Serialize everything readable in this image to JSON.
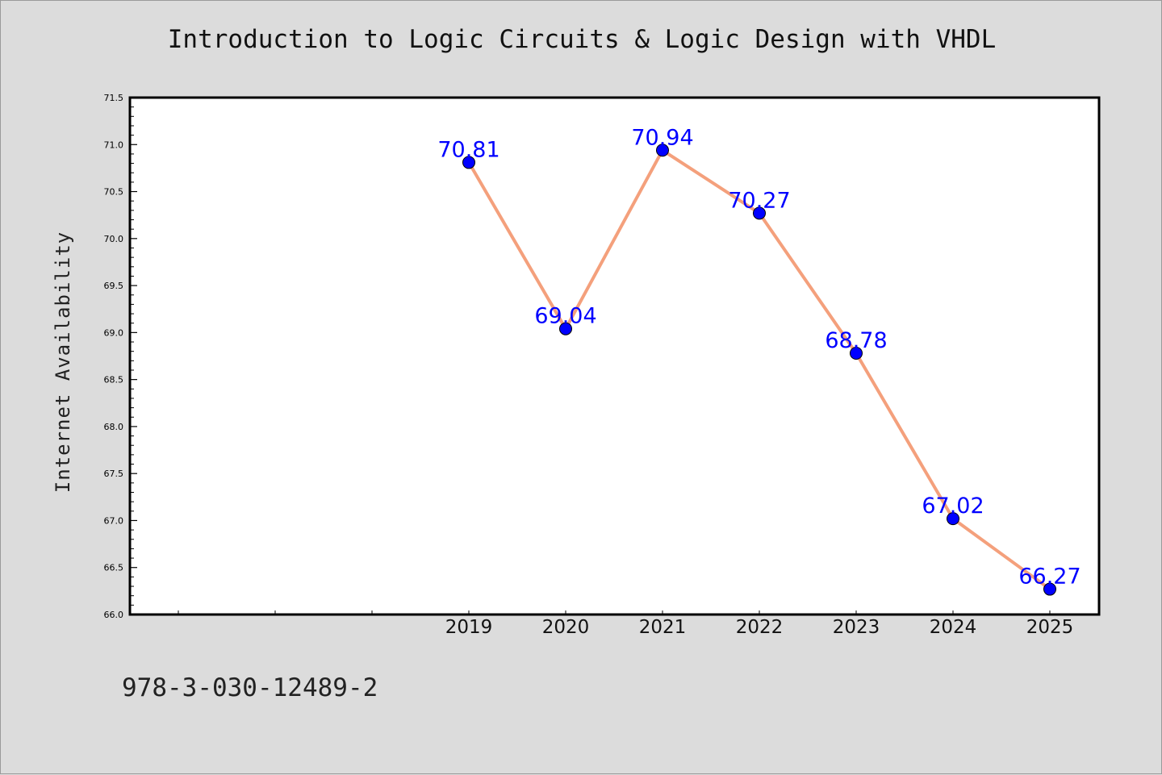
{
  "title": "Introduction to Logic Circuits & Logic Design with VHDL",
  "footnote": "978-3-030-12489-2",
  "colors": {
    "background": "#dcdcdc",
    "plot_background": "#ffffff",
    "line": "#f4a07c",
    "marker": "#0000ff",
    "label": "#0000ff"
  },
  "chart_data": {
    "type": "line",
    "title": "Introduction to Logic Circuits & Logic Design with VHDL",
    "xlabel": "",
    "ylabel": "Internet Availability",
    "x": [
      "2019",
      "2020",
      "2021",
      "2022",
      "2023",
      "2024",
      "2025"
    ],
    "values": [
      70.81,
      69.04,
      70.94,
      70.27,
      68.78,
      67.02,
      66.27
    ],
    "data_labels": [
      "70.81",
      "69.04",
      "70.94",
      "70.27",
      "68.78",
      "67.02",
      "66.27"
    ],
    "ylim": [
      66.0,
      71.5
    ],
    "yticks": [
      "66.0",
      "66.5",
      "67.0",
      "67.5",
      "68.0",
      "68.5",
      "69.0",
      "69.5",
      "70.0",
      "70.5",
      "71.0",
      "71.5"
    ],
    "grid": false,
    "legend": false
  }
}
